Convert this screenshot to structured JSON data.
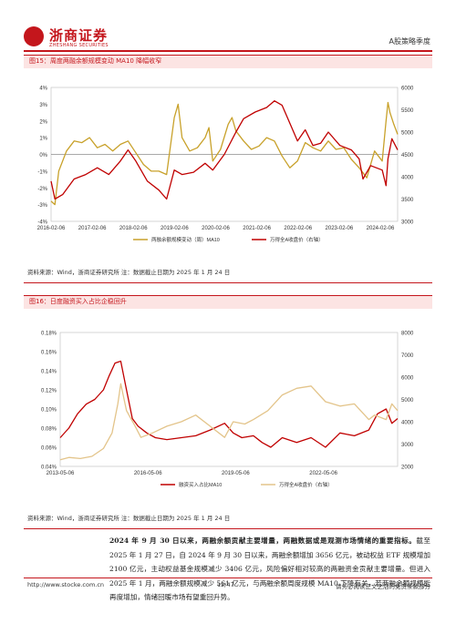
{
  "header": {
    "logo_name": "浙商证券",
    "logo_sub": "ZHESHANG SECURITIES",
    "report_type": "A股策略季度"
  },
  "figure15": {
    "title": "图15：周度两融余额规模变动 MA10 降幅收窄",
    "source": "资料来源：Wind，浙商证券研究所 注：数据截止日期为 2025 年 1 月 24 日",
    "legend": [
      "两融余额规模变动（周）MA10",
      "万得全A收盘价（右轴）"
    ],
    "colors": {
      "series1": "#c8a12a",
      "series2": "#c00000"
    }
  },
  "figure16": {
    "title": "图16：日度融资买入占比企稳回升",
    "source": "资料来源：Wind，浙商证券研究所 注：数据截止日期为 2025 年 1 月 24 日",
    "legend": [
      "融资买入占比MA10",
      "万得全A收盘价（右轴）"
    ],
    "colors": {
      "series1": "#c00000",
      "series2": "#e3c48a"
    }
  },
  "body": {
    "lead": "2024 年 9 月 30 日以来，两融余额贡献主要增量，两融数据或是观测市场情绪的重要指标。",
    "text": "截至 2025 年 1 月 27 日，自 2024 年 9 月 30 日以来，两融余额增加 3656 亿元，被动权益 ETF 规模增加 2100 亿元，主动权益基金规模减少 3406 亿元，风险偏好相对较高的两融资金贡献主要增量。但进入 2025 年 1 月，两融余额规模减少 561 亿元，与两融余额周度规模 MA10 下降有关，若两融余额规模能再度增加，情绪回暖市场有望重回升势。"
  },
  "footer": {
    "url": "http://www.stocke.com.cn",
    "page": "12/47",
    "disclaimer": "请务必阅读正文之后的免责条款部分"
  },
  "chart_data": [
    {
      "type": "line",
      "title": "周度两融余额规模变动 MA10 降幅收窄",
      "x_ticks": [
        "2016-02-06",
        "2017-02-06",
        "2018-02-06",
        "2019-02-06",
        "2020-02-06",
        "2021-02-06",
        "2022-02-06",
        "2023-02-06",
        "2024-02-06"
      ],
      "y_left": {
        "ticks": [
          "4%",
          "3%",
          "2%",
          "1%",
          "0%",
          "-1%",
          "-2%",
          "-3%",
          "-4%"
        ],
        "range": [
          -0.04,
          0.04
        ]
      },
      "y_right": {
        "ticks": [
          "6000",
          "5500",
          "5000",
          "4500",
          "4000",
          "3500",
          "3000"
        ],
        "range": [
          3000,
          6000
        ]
      },
      "series": [
        {
          "name": "两融余额规模变动（周）MA10",
          "axis": "left",
          "x": [
            2016.0,
            2016.1,
            2016.2,
            2016.4,
            2016.6,
            2016.8,
            2017.0,
            2017.2,
            2017.4,
            2017.6,
            2017.8,
            2018.0,
            2018.2,
            2018.4,
            2018.6,
            2018.8,
            2019.0,
            2019.1,
            2019.2,
            2019.3,
            2019.4,
            2019.6,
            2019.8,
            2020.0,
            2020.1,
            2020.2,
            2020.4,
            2020.6,
            2020.7,
            2020.8,
            2021.0,
            2021.2,
            2021.4,
            2021.6,
            2021.8,
            2022.0,
            2022.2,
            2022.4,
            2022.6,
            2022.8,
            2023.0,
            2023.2,
            2023.4,
            2023.6,
            2023.8,
            2024.0,
            2024.2,
            2024.4,
            2024.6,
            2024.7,
            2024.75,
            2024.8,
            2024.9,
            2025.0
          ],
          "values": [
            -0.028,
            -0.03,
            -0.01,
            0.002,
            0.008,
            0.007,
            0.01,
            0.004,
            0.006,
            0.002,
            0.006,
            0.008,
            0.001,
            -0.006,
            -0.01,
            -0.01,
            -0.012,
            0.005,
            0.022,
            0.03,
            0.01,
            0.002,
            0.004,
            0.01,
            0.016,
            -0.004,
            0.003,
            0.018,
            0.022,
            0.014,
            0.008,
            0.003,
            0.005,
            0.01,
            0.008,
            -0.001,
            -0.008,
            -0.004,
            0.007,
            0.004,
            0.002,
            0.008,
            0.003,
            0.004,
            -0.003,
            -0.008,
            -0.014,
            0.002,
            -0.004,
            0.02,
            0.031,
            0.025,
            0.018,
            0.012
          ]
        },
        {
          "name": "万得全A收盘价（右轴）",
          "axis": "right",
          "x": [
            2016.0,
            2016.1,
            2016.3,
            2016.6,
            2016.9,
            2017.2,
            2017.5,
            2017.8,
            2018.0,
            2018.2,
            2018.5,
            2018.8,
            2019.0,
            2019.2,
            2019.4,
            2019.7,
            2020.0,
            2020.2,
            2020.5,
            2020.8,
            2021.0,
            2021.3,
            2021.6,
            2021.8,
            2022.0,
            2022.2,
            2022.4,
            2022.6,
            2022.8,
            2023.0,
            2023.2,
            2023.5,
            2023.8,
            2024.0,
            2024.1,
            2024.3,
            2024.6,
            2024.7,
            2024.75,
            2024.85,
            2025.0
          ],
          "values": [
            3900,
            3500,
            3600,
            3950,
            4050,
            4200,
            4050,
            4350,
            4600,
            4350,
            3900,
            3700,
            3500,
            4150,
            4050,
            4100,
            4300,
            4150,
            4500,
            5000,
            5300,
            5450,
            5550,
            5700,
            5600,
            5200,
            4800,
            5050,
            4700,
            4750,
            5000,
            4700,
            4600,
            4400,
            3950,
            4250,
            4150,
            3800,
            4400,
            4850,
            4600
          ]
        }
      ]
    },
    {
      "type": "line",
      "title": "日度融资买入占比企稳回升",
      "x_ticks": [
        "2013-05-06",
        "2016-05-06",
        "2019-05-06",
        "2022-05-06"
      ],
      "y_left": {
        "ticks": [
          "0.18%",
          "0.16%",
          "0.14%",
          "0.12%",
          "0.10%",
          "0.08%",
          "0.06%",
          "0.04%"
        ],
        "range": [
          0.04,
          0.18
        ]
      },
      "y_right": {
        "ticks": [
          "8000",
          "7000",
          "6000",
          "5000",
          "4000",
          "3000",
          "2000"
        ],
        "range": [
          2000,
          8000
        ]
      },
      "series": [
        {
          "name": "融资买入占比MA10",
          "axis": "left",
          "x": [
            2013.3,
            2013.6,
            2013.9,
            2014.2,
            2014.5,
            2014.8,
            2015.0,
            2015.2,
            2015.4,
            2015.6,
            2015.8,
            2016.0,
            2016.3,
            2016.6,
            2017.0,
            2017.5,
            2018.0,
            2018.5,
            2019.0,
            2019.3,
            2019.6,
            2020.0,
            2020.3,
            2020.6,
            2021.0,
            2021.5,
            2022.0,
            2022.5,
            2023.0,
            2023.5,
            2024.0,
            2024.3,
            2024.6,
            2024.8,
            2025.0
          ],
          "values": [
            0.07,
            0.08,
            0.095,
            0.105,
            0.11,
            0.12,
            0.135,
            0.148,
            0.15,
            0.12,
            0.09,
            0.082,
            0.075,
            0.07,
            0.068,
            0.07,
            0.072,
            0.078,
            0.085,
            0.075,
            0.07,
            0.072,
            0.065,
            0.06,
            0.07,
            0.065,
            0.07,
            0.06,
            0.075,
            0.072,
            0.078,
            0.095,
            0.1,
            0.085,
            0.09
          ]
        },
        {
          "name": "万得全A收盘价（右轴）",
          "axis": "right",
          "x": [
            2013.3,
            2013.6,
            2014.0,
            2014.4,
            2014.8,
            2015.1,
            2015.3,
            2015.4,
            2015.6,
            2015.9,
            2016.1,
            2016.5,
            2017.0,
            2017.5,
            2018.0,
            2018.5,
            2019.0,
            2019.3,
            2019.7,
            2020.0,
            2020.5,
            2021.0,
            2021.5,
            2022.0,
            2022.5,
            2023.0,
            2023.5,
            2024.0,
            2024.2,
            2024.6,
            2024.8,
            2025.0
          ],
          "values": [
            2300,
            2400,
            2350,
            2450,
            2800,
            3500,
            4800,
            5700,
            4500,
            3800,
            3300,
            3500,
            3800,
            4000,
            4300,
            3800,
            3300,
            4000,
            3900,
            4100,
            4500,
            5200,
            5500,
            5600,
            4900,
            4700,
            4800,
            4100,
            4300,
            4100,
            4800,
            4500
          ]
        }
      ]
    }
  ]
}
